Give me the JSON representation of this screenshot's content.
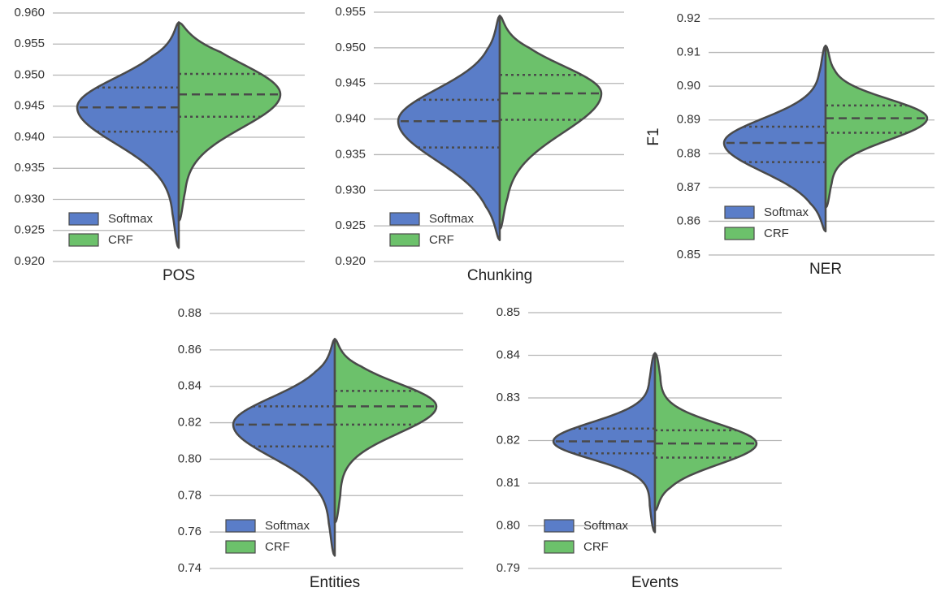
{
  "chart_data": [
    {
      "type": "violin",
      "categories": [
        "POS"
      ],
      "ylim": [
        0.92,
        0.96
      ],
      "yticks": [
        {
          "value": 0.92,
          "label": "0.920"
        },
        0.925,
        {
          "value": 0.93,
          "label": "0.930"
        },
        0.935,
        {
          "value": 0.94,
          "label": "0.940"
        },
        0.945,
        {
          "value": 0.95,
          "label": "0.950"
        },
        0.955,
        {
          "value": 0.96,
          "label": "0.960"
        }
      ],
      "grid": true,
      "legend": "lower left",
      "series": [
        {
          "name": "Softmax",
          "color": "#5a7dc8",
          "values": [
            0.9222,
            0.9409,
            0.9448,
            0.948,
            0.9585
          ]
        },
        {
          "name": "CRF",
          "color": "#6cc16b",
          "values": [
            0.9265,
            0.9433,
            0.9469,
            0.9502,
            0.9585
          ]
        }
      ]
    },
    {
      "type": "violin",
      "categories": [
        "Chunking"
      ],
      "ylim": [
        0.92,
        0.955
      ],
      "yticks": [
        {
          "value": 0.92,
          "label": "0.920"
        },
        0.925,
        {
          "value": 0.93,
          "label": "0.930"
        },
        0.935,
        {
          "value": 0.94,
          "label": "0.940"
        },
        0.945,
        {
          "value": 0.95,
          "label": "0.950"
        },
        0.955
      ],
      "grid": true,
      "legend": "lower left",
      "series": [
        {
          "name": "Softmax",
          "color": "#5a7dc8",
          "values": [
            0.923,
            0.936,
            0.9397,
            0.9427,
            0.9545
          ]
        },
        {
          "name": "CRF",
          "color": "#6cc16b",
          "values": [
            0.9245,
            0.9399,
            0.9436,
            0.9462,
            0.9545
          ]
        }
      ]
    },
    {
      "type": "violin",
      "categories": [
        "NER"
      ],
      "ylabel": "F1",
      "ylim": [
        0.85,
        0.92
      ],
      "yticks": [
        0.85,
        0.86,
        0.87,
        0.88,
        0.89,
        {
          "value": 0.9,
          "label": "0.90"
        },
        0.91,
        0.92
      ],
      "grid": true,
      "legend": "lower left",
      "series": [
        {
          "name": "Softmax",
          "color": "#5a7dc8",
          "values": [
            0.857,
            0.8775,
            0.8832,
            0.888,
            0.912
          ]
        },
        {
          "name": "CRF",
          "color": "#6cc16b",
          "values": [
            0.864,
            0.8862,
            0.8905,
            0.8943,
            0.912
          ]
        }
      ]
    },
    {
      "type": "violin",
      "categories": [
        "Entities"
      ],
      "ylim": [
        0.74,
        0.88
      ],
      "yticks": [
        0.74,
        0.76,
        0.78,
        {
          "value": 0.8,
          "label": "0.80"
        },
        0.82,
        0.84,
        0.86,
        0.88
      ],
      "grid": true,
      "legend": "lower left",
      "series": [
        {
          "name": "Softmax",
          "color": "#5a7dc8",
          "values": [
            0.747,
            0.807,
            0.819,
            0.829,
            0.866
          ]
        },
        {
          "name": "CRF",
          "color": "#6cc16b",
          "values": [
            0.765,
            0.819,
            0.829,
            0.8375,
            0.866
          ]
        }
      ]
    },
    {
      "type": "violin",
      "categories": [
        "Events"
      ],
      "ylim": [
        0.79,
        0.85
      ],
      "yticks": [
        0.79,
        {
          "value": 0.8,
          "label": "0.80"
        },
        0.81,
        0.82,
        0.83,
        0.84,
        0.85
      ],
      "grid": true,
      "legend": "lower left",
      "series": [
        {
          "name": "Softmax",
          "color": "#5a7dc8",
          "values": [
            0.7985,
            0.817,
            0.8198,
            0.8228,
            0.8405
          ]
        },
        {
          "name": "CRF",
          "color": "#6cc16b",
          "values": [
            0.8035,
            0.816,
            0.8193,
            0.8224,
            0.8405
          ]
        }
      ]
    }
  ]
}
